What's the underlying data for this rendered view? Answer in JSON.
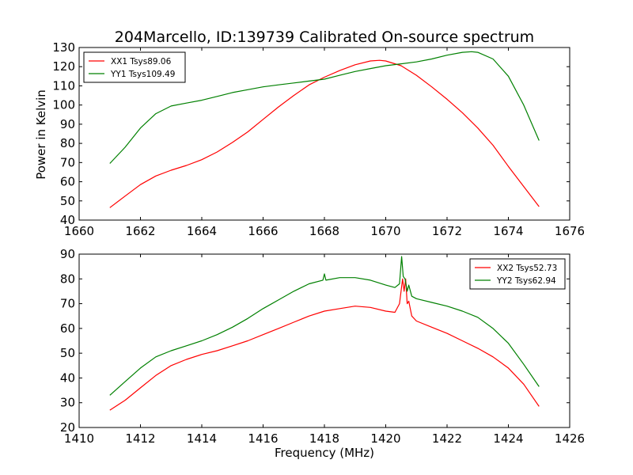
{
  "figure": {
    "title": "204Marcello, ID:139739 Calibrated On-source spectrum",
    "ylabel": "Power in Kelvin",
    "xlabel": "Frequency (MHz)"
  },
  "colors": {
    "red": "#ff0000",
    "green": "#008000"
  },
  "chart_data": [
    {
      "type": "line",
      "xlim": [
        1660,
        1676
      ],
      "ylim": [
        40,
        130
      ],
      "grid": false,
      "legend_position": "top-left",
      "x_ticks": [
        1660,
        1662,
        1664,
        1666,
        1668,
        1670,
        1672,
        1674,
        1676
      ],
      "y_ticks": [
        40,
        50,
        60,
        70,
        80,
        90,
        100,
        110,
        120,
        130
      ],
      "series": [
        {
          "name": "XX1 Tsys89.06",
          "color": "#ff0000",
          "x": [
            1661.0,
            1661.5,
            1662.0,
            1662.5,
            1663.0,
            1663.5,
            1664.0,
            1664.5,
            1665.0,
            1665.5,
            1666.0,
            1666.5,
            1667.0,
            1667.5,
            1668.0,
            1668.5,
            1669.0,
            1669.5,
            1669.8,
            1670.0,
            1670.5,
            1671.0,
            1671.5,
            1672.0,
            1672.5,
            1673.0,
            1673.5,
            1674.0,
            1674.5,
            1675.0
          ],
          "y": [
            46.5,
            52.5,
            58.5,
            63.0,
            66.0,
            68.5,
            71.5,
            75.5,
            80.5,
            86.0,
            92.5,
            99.0,
            105.0,
            110.5,
            114.5,
            118.0,
            121.0,
            123.0,
            123.3,
            123.0,
            120.5,
            115.5,
            109.5,
            103.0,
            96.0,
            88.0,
            79.0,
            68.0,
            57.5,
            47.0
          ]
        },
        {
          "name": "YY1 Tsys109.49",
          "color": "#008000",
          "x": [
            1661.0,
            1661.5,
            1662.0,
            1662.5,
            1663.0,
            1663.5,
            1664.0,
            1664.5,
            1665.0,
            1665.5,
            1666.0,
            1666.5,
            1667.0,
            1667.5,
            1668.0,
            1668.5,
            1669.0,
            1669.5,
            1670.0,
            1670.5,
            1671.0,
            1671.5,
            1672.0,
            1672.5,
            1672.8,
            1673.0,
            1673.5,
            1674.0,
            1674.5,
            1675.0
          ],
          "y": [
            69.5,
            78.0,
            88.0,
            95.5,
            99.5,
            101.0,
            102.5,
            104.5,
            106.5,
            108.0,
            109.5,
            110.5,
            111.5,
            112.5,
            113.5,
            115.5,
            117.5,
            119.0,
            120.5,
            121.5,
            122.5,
            124.0,
            126.0,
            127.5,
            127.8,
            127.5,
            124.0,
            115.0,
            100.0,
            81.5
          ]
        }
      ]
    },
    {
      "type": "line",
      "xlim": [
        1410,
        1426
      ],
      "ylim": [
        20,
        90
      ],
      "grid": false,
      "legend_position": "top-right",
      "x_ticks": [
        1410,
        1412,
        1414,
        1416,
        1418,
        1420,
        1422,
        1424,
        1426
      ],
      "y_ticks": [
        20,
        30,
        40,
        50,
        60,
        70,
        80,
        90
      ],
      "series": [
        {
          "name": "XX2 Tsys52.73",
          "color": "#ff0000",
          "x": [
            1411.0,
            1411.5,
            1412.0,
            1412.5,
            1413.0,
            1413.5,
            1414.0,
            1414.5,
            1415.0,
            1415.5,
            1416.0,
            1416.5,
            1417.0,
            1417.5,
            1418.0,
            1418.5,
            1419.0,
            1419.5,
            1420.0,
            1420.3,
            1420.45,
            1420.55,
            1420.6,
            1420.65,
            1420.7,
            1420.75,
            1420.85,
            1421.0,
            1421.5,
            1422.0,
            1422.5,
            1423.0,
            1423.5,
            1424.0,
            1424.5,
            1425.0
          ],
          "y": [
            27.0,
            31.0,
            36.0,
            41.0,
            45.0,
            47.5,
            49.5,
            51.0,
            53.0,
            55.0,
            57.5,
            60.0,
            62.5,
            65.0,
            67.0,
            68.0,
            69.0,
            68.5,
            67.0,
            66.5,
            70.0,
            80.0,
            75.0,
            80.0,
            70.0,
            71.0,
            65.0,
            63.0,
            60.5,
            58.0,
            55.0,
            52.0,
            48.5,
            44.0,
            37.5,
            28.5
          ]
        },
        {
          "name": "YY2 Tsys62.94",
          "color": "#008000",
          "x": [
            1411.0,
            1411.5,
            1412.0,
            1412.5,
            1413.0,
            1413.5,
            1414.0,
            1414.5,
            1415.0,
            1415.5,
            1416.0,
            1416.5,
            1417.0,
            1417.5,
            1417.95,
            1418.0,
            1418.05,
            1418.5,
            1419.0,
            1419.5,
            1420.0,
            1420.3,
            1420.45,
            1420.52,
            1420.57,
            1420.63,
            1420.7,
            1420.75,
            1420.85,
            1421.0,
            1421.5,
            1422.0,
            1422.5,
            1423.0,
            1423.5,
            1424.0,
            1424.5,
            1425.0
          ],
          "y": [
            33.0,
            38.5,
            44.0,
            48.5,
            51.0,
            53.0,
            55.0,
            57.5,
            60.5,
            64.0,
            68.0,
            71.5,
            75.0,
            78.0,
            79.5,
            82.0,
            79.5,
            80.5,
            80.5,
            79.5,
            77.5,
            76.5,
            78.0,
            89.0,
            81.0,
            80.0,
            75.0,
            77.5,
            73.0,
            72.0,
            70.5,
            69.0,
            67.0,
            64.5,
            60.0,
            54.0,
            45.5,
            36.5
          ]
        }
      ]
    }
  ]
}
